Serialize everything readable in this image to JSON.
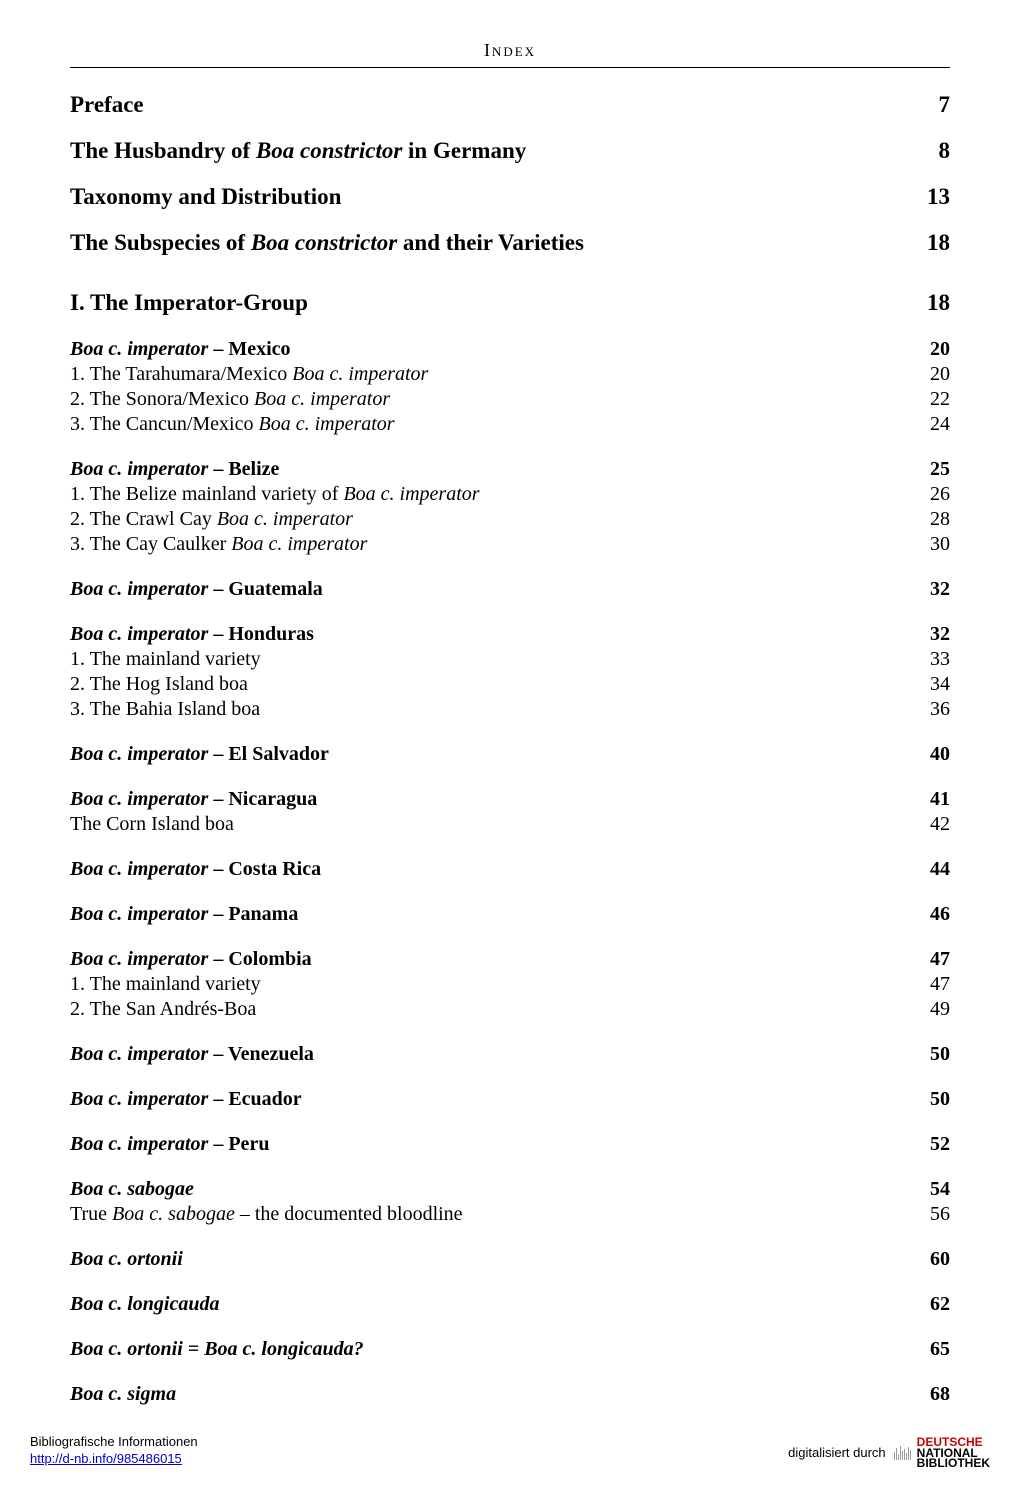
{
  "header": "Index",
  "majors": [
    {
      "label": "Preface",
      "page": "7"
    },
    {
      "labelParts": [
        {
          "t": "The Husbandry of ",
          "i": false
        },
        {
          "t": "Boa constrictor",
          "i": true
        },
        {
          "t": " in Germany",
          "i": false
        }
      ],
      "page": "8"
    },
    {
      "label": "Taxonomy and Distribution",
      "page": "13"
    },
    {
      "labelParts": [
        {
          "t": "The Subspecies of ",
          "i": false
        },
        {
          "t": "Boa constrictor",
          "i": true
        },
        {
          "t": " and their Varieties",
          "i": false
        }
      ],
      "page": "18"
    }
  ],
  "section1": {
    "label": "I. The Imperator-Group",
    "page": "18"
  },
  "groups": [
    {
      "head": {
        "prefix": "Boa c. imperator",
        "suffix": " – Mexico",
        "page": "20"
      },
      "lines": [
        {
          "before": "1. The Tarahumara/Mexico ",
          "italic": "Boa c. imperator",
          "page": "20"
        },
        {
          "before": "2. The Sonora/Mexico ",
          "italic": "Boa c. imperator",
          "page": "22"
        },
        {
          "before": "3. The Cancun/Mexico ",
          "italic": "Boa c. imperator",
          "page": "24"
        }
      ]
    },
    {
      "head": {
        "prefix": "Boa c. imperator",
        "suffix": " – Belize",
        "page": "25"
      },
      "lines": [
        {
          "before": "1. The Belize mainland variety of ",
          "italic": "Boa c. imperator",
          "page": "26"
        },
        {
          "before": "2. The Crawl Cay ",
          "italic": "Boa c. imperator",
          "page": "28"
        },
        {
          "before": "3. The Cay Caulker ",
          "italic": "Boa c. imperator",
          "page": "30"
        }
      ]
    },
    {
      "head": {
        "prefix": "Boa c. imperator",
        "suffix": " – Guatemala",
        "page": "32"
      },
      "lines": []
    },
    {
      "head": {
        "prefix": "Boa c. imperator",
        "suffix": " – Honduras",
        "page": "32"
      },
      "lines": [
        {
          "before": "1. The mainland variety",
          "italic": "",
          "page": "33"
        },
        {
          "before": "2. The Hog Island boa",
          "italic": "",
          "page": "34"
        },
        {
          "before": "3. The Bahia Island boa",
          "italic": "",
          "page": "36"
        }
      ]
    },
    {
      "head": {
        "prefix": "Boa c. imperator",
        "suffix": " – El Salvador",
        "page": "40"
      },
      "lines": []
    },
    {
      "head": {
        "prefix": "Boa c. imperator",
        "suffix": " – Nicaragua",
        "page": "41"
      },
      "lines": [
        {
          "before": "The Corn Island boa",
          "italic": "",
          "page": "42"
        }
      ]
    },
    {
      "head": {
        "prefix": "Boa c. imperator",
        "suffix": " – Costa Rica",
        "page": "44"
      },
      "lines": []
    },
    {
      "head": {
        "prefix": "Boa c. imperator",
        "suffix": " – Panama",
        "page": "46"
      },
      "lines": []
    },
    {
      "head": {
        "prefix": "Boa c. imperator",
        "suffix": " – Colombia",
        "page": "47"
      },
      "lines": [
        {
          "before": "1. The mainland variety",
          "italic": "",
          "page": "47"
        },
        {
          "before": "2. The San Andrés-Boa",
          "italic": "",
          "page": "49"
        }
      ]
    },
    {
      "head": {
        "prefix": "Boa c. imperator",
        "suffix": " – Venezuela",
        "page": "50"
      },
      "lines": []
    },
    {
      "head": {
        "prefix": "Boa c. imperator",
        "suffix": " – Ecuador",
        "page": "50"
      },
      "lines": []
    },
    {
      "head": {
        "prefix": "Boa c. imperator",
        "suffix": " – Peru",
        "page": "52"
      },
      "lines": []
    },
    {
      "head": {
        "prefix": "Boa c. sabogae",
        "suffix": "",
        "page": "54"
      },
      "lines": [
        {
          "before": "True ",
          "italic": "Boa c. sabogae",
          "after": " – the documented bloodline",
          "page": "56"
        }
      ]
    },
    {
      "head": {
        "prefix": "Boa c. ortonii",
        "suffix": "",
        "page": "60"
      },
      "lines": []
    },
    {
      "head": {
        "prefix": "Boa c. longicauda",
        "suffix": "",
        "page": "62"
      },
      "lines": []
    },
    {
      "head": {
        "prefix": "Boa c. ortonii = Boa c. longicauda?",
        "suffix": "",
        "page": "65"
      },
      "lines": []
    },
    {
      "head": {
        "prefix": "Boa c. sigma",
        "suffix": "",
        "page": "68"
      },
      "lines": []
    }
  ],
  "footer": {
    "left1": "Bibliografische Informationen",
    "left2": "http://d-nb.info/985486015",
    "rightText": "digitalisiert durch",
    "logo1": "DEUTSCHE",
    "logo2": "NATIONAL",
    "logo3": "BIBLIOTHEK"
  }
}
